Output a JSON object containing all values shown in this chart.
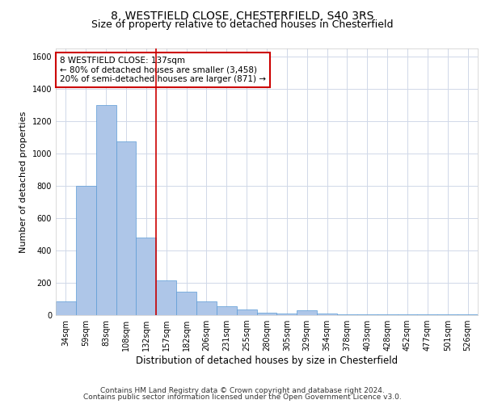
{
  "title1": "8, WESTFIELD CLOSE, CHESTERFIELD, S40 3RS",
  "title2": "Size of property relative to detached houses in Chesterfield",
  "xlabel": "Distribution of detached houses by size in Chesterfield",
  "ylabel": "Number of detached properties",
  "footer1": "Contains HM Land Registry data © Crown copyright and database right 2024.",
  "footer2": "Contains public sector information licensed under the Open Government Licence v3.0.",
  "bin_labels": [
    "34sqm",
    "59sqm",
    "83sqm",
    "108sqm",
    "132sqm",
    "157sqm",
    "182sqm",
    "206sqm",
    "231sqm",
    "255sqm",
    "280sqm",
    "305sqm",
    "329sqm",
    "354sqm",
    "378sqm",
    "403sqm",
    "428sqm",
    "452sqm",
    "477sqm",
    "501sqm",
    "526sqm"
  ],
  "bar_values": [
    85,
    800,
    1300,
    1075,
    480,
    215,
    145,
    85,
    55,
    35,
    15,
    10,
    30,
    10,
    5,
    5,
    5,
    5,
    5,
    5,
    5
  ],
  "bar_color": "#aec6e8",
  "bar_edge_color": "#5b9bd5",
  "vline_x_idx": 4.5,
  "vline_color": "#cc0000",
  "annotation_text": "8 WESTFIELD CLOSE: 137sqm\n← 80% of detached houses are smaller (3,458)\n20% of semi-detached houses are larger (871) →",
  "annotation_box_color": "#cc0000",
  "ylim": [
    0,
    1650
  ],
  "yticks": [
    0,
    200,
    400,
    600,
    800,
    1000,
    1200,
    1400,
    1600
  ],
  "bg_color": "#ffffff",
  "grid_color": "#d0d8e8",
  "title1_fontsize": 10,
  "title2_fontsize": 9,
  "xlabel_fontsize": 8.5,
  "ylabel_fontsize": 8,
  "tick_fontsize": 7,
  "footer_fontsize": 6.5,
  "ann_fontsize": 7.5
}
